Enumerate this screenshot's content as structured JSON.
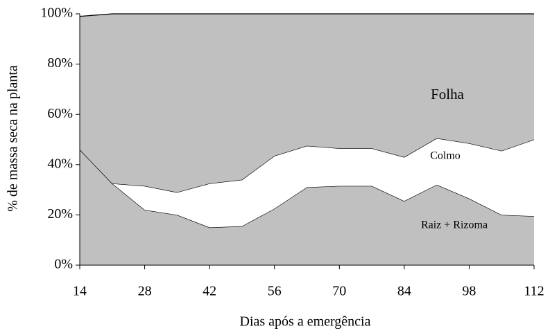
{
  "chart_data": {
    "type": "stacked_area",
    "x_label": "Dias após a emergência",
    "y_label": "% de massa seca na planta",
    "x": [
      14,
      21,
      28,
      35,
      42,
      49,
      56,
      63,
      70,
      77,
      84,
      91,
      98,
      105,
      112
    ],
    "series": [
      {
        "name": "Raiz + Rizoma",
        "color": "#c0c0c0",
        "values": [
          46,
          32.5,
          22,
          20,
          15,
          15.5,
          22.5,
          31,
          31.5,
          31.5,
          25.5,
          32,
          26.5,
          20,
          19.5
        ]
      },
      {
        "name": "Colmo",
        "color": "#ffffff",
        "values": [
          0,
          0,
          9.5,
          9,
          17.5,
          18.5,
          21,
          16.5,
          15,
          15,
          17.5,
          18.5,
          22,
          25.5,
          30.5
        ]
      },
      {
        "name": "Folha",
        "color": "#c0c0c0",
        "values": [
          53,
          67.5,
          68.5,
          71,
          67.5,
          66,
          56.5,
          52.5,
          53.5,
          53.5,
          57,
          49.5,
          51.5,
          54.5,
          50
        ]
      }
    ],
    "xlim": [
      14,
      112
    ],
    "xticks": [
      14,
      28,
      42,
      56,
      70,
      84,
      98,
      112
    ],
    "ylim": [
      0,
      100
    ],
    "yticks": [
      {
        "value": 0,
        "label": "0%"
      },
      {
        "value": 20,
        "label": "20%"
      },
      {
        "value": 40,
        "label": "40%"
      },
      {
        "value": 60,
        "label": "60%"
      },
      {
        "value": 80,
        "label": "80%"
      },
      {
        "value": 100,
        "label": "100%"
      }
    ]
  }
}
